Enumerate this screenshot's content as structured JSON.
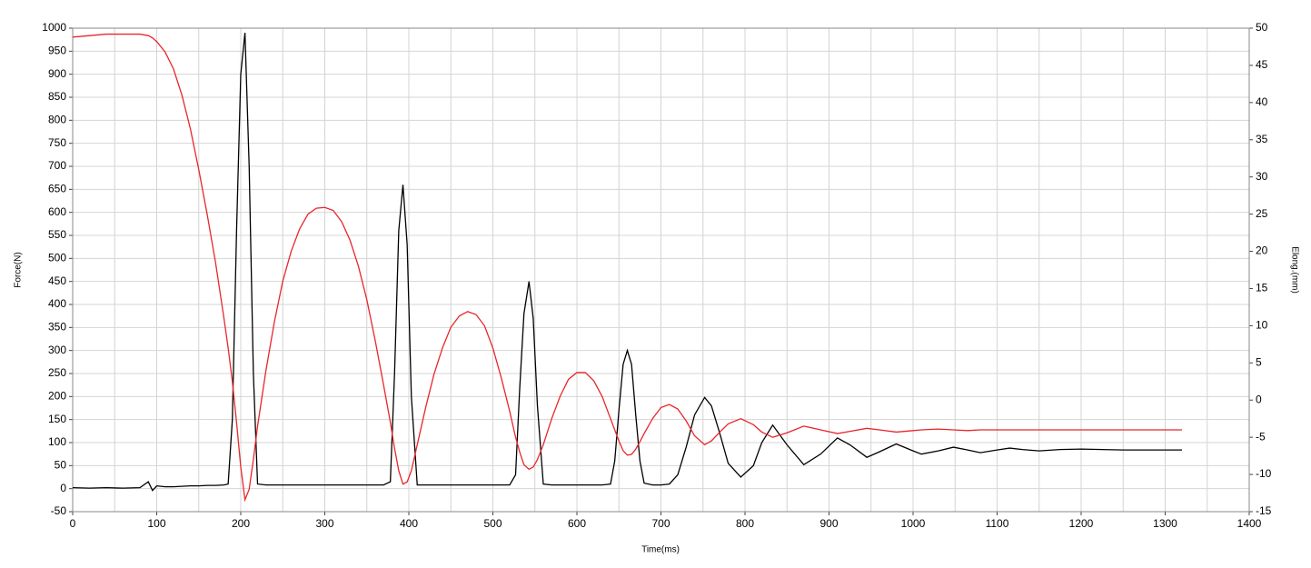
{
  "chart_data": {
    "type": "line",
    "xlabel": "Time(ms)",
    "ylabel": "Force(N)",
    "y2label": "Elong.(mm)",
    "x": [
      0,
      20,
      40,
      60,
      80,
      90,
      95,
      100,
      110,
      120,
      130,
      140,
      150,
      160,
      170,
      180,
      185,
      190,
      195,
      200,
      205,
      210,
      215,
      220,
      230,
      240,
      250,
      260,
      270,
      280,
      290,
      300,
      310,
      320,
      330,
      340,
      350,
      360,
      370,
      378,
      383,
      388,
      393,
      398,
      403,
      410,
      420,
      430,
      440,
      450,
      460,
      470,
      480,
      490,
      500,
      510,
      520,
      527,
      532,
      537,
      543,
      548,
      553,
      560,
      570,
      580,
      590,
      600,
      610,
      620,
      630,
      640,
      645,
      650,
      655,
      660,
      665,
      670,
      675,
      680,
      690,
      700,
      710,
      720,
      730,
      740,
      752,
      760,
      770,
      780,
      795,
      810,
      820,
      833,
      850,
      870,
      890,
      910,
      925,
      945,
      960,
      980,
      1000,
      1010,
      1030,
      1048,
      1065,
      1080,
      1100,
      1115,
      1130,
      1150,
      1175,
      1200,
      1250,
      1300,
      1320
    ],
    "series": [
      {
        "color": "#000000",
        "axis": "y",
        "values": [
          2,
          1,
          2,
          1,
          2,
          15,
          -4,
          6,
          4,
          4,
          5,
          6,
          6,
          7,
          7,
          8,
          10,
          150,
          560,
          900,
          990,
          700,
          250,
          10,
          8,
          8,
          8,
          8,
          8,
          8,
          8,
          8,
          8,
          8,
          8,
          8,
          8,
          8,
          8,
          15,
          250,
          560,
          660,
          530,
          200,
          8,
          8,
          8,
          8,
          8,
          8,
          8,
          8,
          8,
          8,
          8,
          8,
          30,
          220,
          380,
          450,
          370,
          180,
          10,
          8,
          8,
          8,
          8,
          8,
          8,
          8,
          10,
          60,
          170,
          270,
          300,
          270,
          160,
          60,
          12,
          8,
          8,
          10,
          30,
          90,
          160,
          198,
          180,
          120,
          55,
          25,
          50,
          100,
          138,
          95,
          52,
          75,
          110,
          95,
          68,
          80,
          97,
          82,
          75,
          82,
          90,
          84,
          78,
          84,
          88,
          85,
          82,
          85,
          86,
          84,
          84,
          84
        ]
      },
      {
        "color": "#e8262a",
        "axis": "y2",
        "values": [
          48.8,
          49,
          49.2,
          49.2,
          49.2,
          49,
          48.7,
          48.2,
          46.8,
          44.5,
          41,
          36.5,
          31,
          25,
          18.5,
          11,
          7,
          2.5,
          -3,
          -9,
          -13.4,
          -12,
          -8,
          -3.5,
          4,
          10.5,
          16,
          20,
          23,
          25,
          25.8,
          25.9,
          25.5,
          24,
          21.5,
          18,
          13.5,
          8,
          2,
          -3,
          -6.5,
          -9.5,
          -11.3,
          -11,
          -9.5,
          -6,
          -1,
          3.5,
          7,
          9.8,
          11.3,
          11.9,
          11.5,
          10,
          7,
          3,
          -1.5,
          -5,
          -7,
          -8.7,
          -9.3,
          -9,
          -8,
          -6,
          -2.5,
          0.5,
          2.8,
          3.7,
          3.7,
          2.6,
          0.5,
          -2.5,
          -4,
          -5.5,
          -6.8,
          -7.4,
          -7.3,
          -6.6,
          -5.6,
          -4.5,
          -2.5,
          -1,
          -0.6,
          -1.2,
          -2.8,
          -4.8,
          -6,
          -5.5,
          -4.3,
          -3.2,
          -2.5,
          -3.3,
          -4.3,
          -5,
          -4.4,
          -3.5,
          -4,
          -4.5,
          -4.2,
          -3.8,
          -4,
          -4.3,
          -4.1,
          -4,
          -3.9,
          -4,
          -4.1,
          -4,
          -4,
          -4,
          -4,
          -4,
          -4,
          -4,
          -4,
          -4,
          -4
        ]
      }
    ],
    "xlim": [
      0,
      1400
    ],
    "xticks": [
      0,
      100,
      200,
      300,
      400,
      500,
      600,
      700,
      800,
      900,
      1000,
      1100,
      1200,
      1300,
      1400
    ],
    "xminorticks": [
      50,
      150,
      250,
      350,
      450,
      550,
      650,
      750,
      850,
      950,
      1050,
      1150,
      1250,
      1350
    ],
    "ylim": [
      -50,
      1000
    ],
    "yticks": [
      -50,
      0,
      50,
      100,
      150,
      200,
      250,
      300,
      350,
      400,
      450,
      500,
      550,
      600,
      650,
      700,
      750,
      800,
      850,
      900,
      950,
      1000
    ],
    "y2lim": [
      -15,
      50
    ],
    "y2ticks": [
      -15,
      -10,
      -5,
      0,
      5,
      10,
      15,
      20,
      25,
      30,
      35,
      40,
      45,
      50
    ],
    "grid": true,
    "grid_color": "#d4d4d4"
  }
}
